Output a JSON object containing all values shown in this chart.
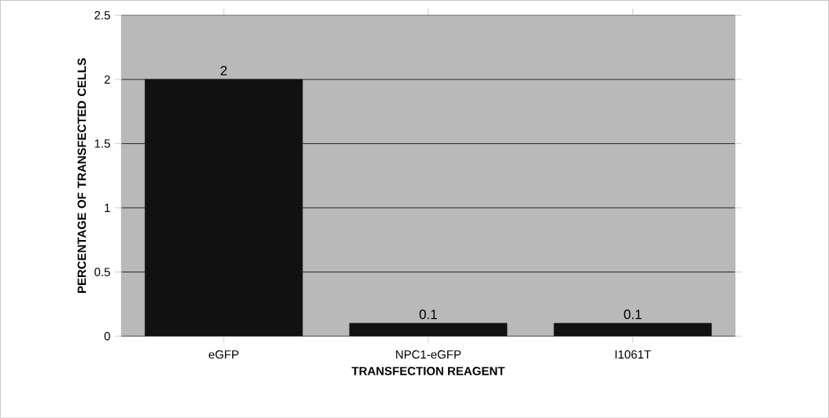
{
  "chart_data": {
    "type": "bar",
    "xlabel": "TRANSFECTION REAGENT",
    "ylabel": "PERCENTAGE OF TRANSFECTED CELLS",
    "categories": [
      "eGFP",
      "NPC1-eGFP",
      "I1061T"
    ],
    "series": [
      {
        "color": "#111111",
        "values": [
          2,
          0.1,
          0.1
        ]
      }
    ],
    "ylim": [
      0,
      2.5
    ],
    "yticks": [
      0,
      0.5,
      1,
      1.5,
      2,
      2.5
    ],
    "grid": "y",
    "data_labels": true
  }
}
